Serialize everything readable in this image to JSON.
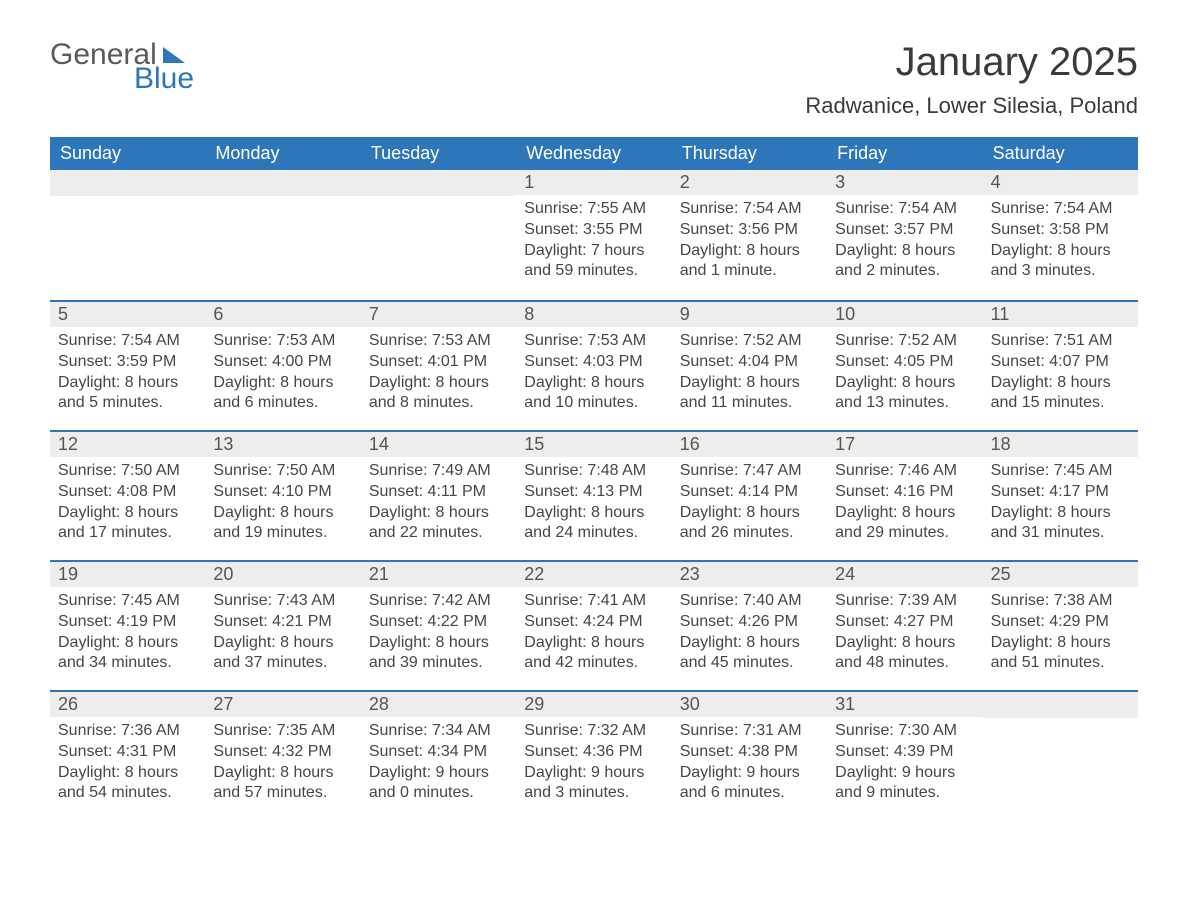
{
  "logo": {
    "word1": "General",
    "word2": "Blue"
  },
  "title": "January 2025",
  "location": "Radwanice, Lower Silesia, Poland",
  "colors": {
    "header_bg": "#2d76ba",
    "header_text": "#ffffff",
    "daynum_bg": "#ededed",
    "daynum_text": "#555555",
    "body_text": "#464646",
    "rule": "#2d76ba",
    "logo_gray": "#5a5a5a",
    "logo_blue": "#2d76ba",
    "page_bg": "#ffffff"
  },
  "weekdays": [
    "Sunday",
    "Monday",
    "Tuesday",
    "Wednesday",
    "Thursday",
    "Friday",
    "Saturday"
  ],
  "weeks": [
    [
      null,
      null,
      null,
      {
        "n": "1",
        "sunrise": "7:55 AM",
        "sunset": "3:55 PM",
        "daylight": "7 hours and 59 minutes."
      },
      {
        "n": "2",
        "sunrise": "7:54 AM",
        "sunset": "3:56 PM",
        "daylight": "8 hours and 1 minute."
      },
      {
        "n": "3",
        "sunrise": "7:54 AM",
        "sunset": "3:57 PM",
        "daylight": "8 hours and 2 minutes."
      },
      {
        "n": "4",
        "sunrise": "7:54 AM",
        "sunset": "3:58 PM",
        "daylight": "8 hours and 3 minutes."
      }
    ],
    [
      {
        "n": "5",
        "sunrise": "7:54 AM",
        "sunset": "3:59 PM",
        "daylight": "8 hours and 5 minutes."
      },
      {
        "n": "6",
        "sunrise": "7:53 AM",
        "sunset": "4:00 PM",
        "daylight": "8 hours and 6 minutes."
      },
      {
        "n": "7",
        "sunrise": "7:53 AM",
        "sunset": "4:01 PM",
        "daylight": "8 hours and 8 minutes."
      },
      {
        "n": "8",
        "sunrise": "7:53 AM",
        "sunset": "4:03 PM",
        "daylight": "8 hours and 10 minutes."
      },
      {
        "n": "9",
        "sunrise": "7:52 AM",
        "sunset": "4:04 PM",
        "daylight": "8 hours and 11 minutes."
      },
      {
        "n": "10",
        "sunrise": "7:52 AM",
        "sunset": "4:05 PM",
        "daylight": "8 hours and 13 minutes."
      },
      {
        "n": "11",
        "sunrise": "7:51 AM",
        "sunset": "4:07 PM",
        "daylight": "8 hours and 15 minutes."
      }
    ],
    [
      {
        "n": "12",
        "sunrise": "7:50 AM",
        "sunset": "4:08 PM",
        "daylight": "8 hours and 17 minutes."
      },
      {
        "n": "13",
        "sunrise": "7:50 AM",
        "sunset": "4:10 PM",
        "daylight": "8 hours and 19 minutes."
      },
      {
        "n": "14",
        "sunrise": "7:49 AM",
        "sunset": "4:11 PM",
        "daylight": "8 hours and 22 minutes."
      },
      {
        "n": "15",
        "sunrise": "7:48 AM",
        "sunset": "4:13 PM",
        "daylight": "8 hours and 24 minutes."
      },
      {
        "n": "16",
        "sunrise": "7:47 AM",
        "sunset": "4:14 PM",
        "daylight": "8 hours and 26 minutes."
      },
      {
        "n": "17",
        "sunrise": "7:46 AM",
        "sunset": "4:16 PM",
        "daylight": "8 hours and 29 minutes."
      },
      {
        "n": "18",
        "sunrise": "7:45 AM",
        "sunset": "4:17 PM",
        "daylight": "8 hours and 31 minutes."
      }
    ],
    [
      {
        "n": "19",
        "sunrise": "7:45 AM",
        "sunset": "4:19 PM",
        "daylight": "8 hours and 34 minutes."
      },
      {
        "n": "20",
        "sunrise": "7:43 AM",
        "sunset": "4:21 PM",
        "daylight": "8 hours and 37 minutes."
      },
      {
        "n": "21",
        "sunrise": "7:42 AM",
        "sunset": "4:22 PM",
        "daylight": "8 hours and 39 minutes."
      },
      {
        "n": "22",
        "sunrise": "7:41 AM",
        "sunset": "4:24 PM",
        "daylight": "8 hours and 42 minutes."
      },
      {
        "n": "23",
        "sunrise": "7:40 AM",
        "sunset": "4:26 PM",
        "daylight": "8 hours and 45 minutes."
      },
      {
        "n": "24",
        "sunrise": "7:39 AM",
        "sunset": "4:27 PM",
        "daylight": "8 hours and 48 minutes."
      },
      {
        "n": "25",
        "sunrise": "7:38 AM",
        "sunset": "4:29 PM",
        "daylight": "8 hours and 51 minutes."
      }
    ],
    [
      {
        "n": "26",
        "sunrise": "7:36 AM",
        "sunset": "4:31 PM",
        "daylight": "8 hours and 54 minutes."
      },
      {
        "n": "27",
        "sunrise": "7:35 AM",
        "sunset": "4:32 PM",
        "daylight": "8 hours and 57 minutes."
      },
      {
        "n": "28",
        "sunrise": "7:34 AM",
        "sunset": "4:34 PM",
        "daylight": "9 hours and 0 minutes."
      },
      {
        "n": "29",
        "sunrise": "7:32 AM",
        "sunset": "4:36 PM",
        "daylight": "9 hours and 3 minutes."
      },
      {
        "n": "30",
        "sunrise": "7:31 AM",
        "sunset": "4:38 PM",
        "daylight": "9 hours and 6 minutes."
      },
      {
        "n": "31",
        "sunrise": "7:30 AM",
        "sunset": "4:39 PM",
        "daylight": "9 hours and 9 minutes."
      },
      null
    ]
  ],
  "labels": {
    "sunrise": "Sunrise: ",
    "sunset": "Sunset: ",
    "daylight": "Daylight: "
  }
}
